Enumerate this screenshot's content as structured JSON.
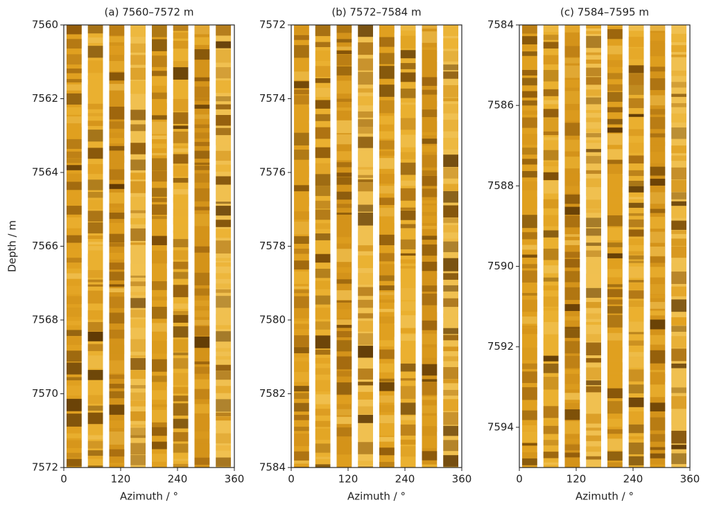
{
  "chart_data": [
    {
      "type": "image",
      "title": "(a) 7560–7572 m",
      "xlabel": "Azimuth / °",
      "ylabel": "Depth / m",
      "xlim": [
        0,
        360
      ],
      "xticks": [
        0,
        120,
        240,
        360
      ],
      "ylim": [
        7560,
        7572
      ],
      "yticks": [
        7560,
        7562,
        7564,
        7566,
        7568,
        7570,
        7572
      ],
      "y_inverted": true
    },
    {
      "type": "image",
      "title": "(b) 7572–7584 m",
      "xlabel": "Azimuth / °",
      "xlim": [
        0,
        360
      ],
      "xticks": [
        0,
        120,
        240,
        360
      ],
      "ylim": [
        7572,
        7584
      ],
      "yticks": [
        7572,
        7574,
        7576,
        7578,
        7580,
        7582,
        7584
      ],
      "y_inverted": true
    },
    {
      "type": "image",
      "title": "(c) 7584–7595 m",
      "xlabel": "Azimuth / °",
      "xlim": [
        0,
        360
      ],
      "xticks": [
        0,
        120,
        240,
        360
      ],
      "ylim": [
        7584,
        7595
      ],
      "yticks": [
        7584,
        7586,
        7588,
        7590,
        7592,
        7594
      ],
      "y_inverted": true
    }
  ]
}
